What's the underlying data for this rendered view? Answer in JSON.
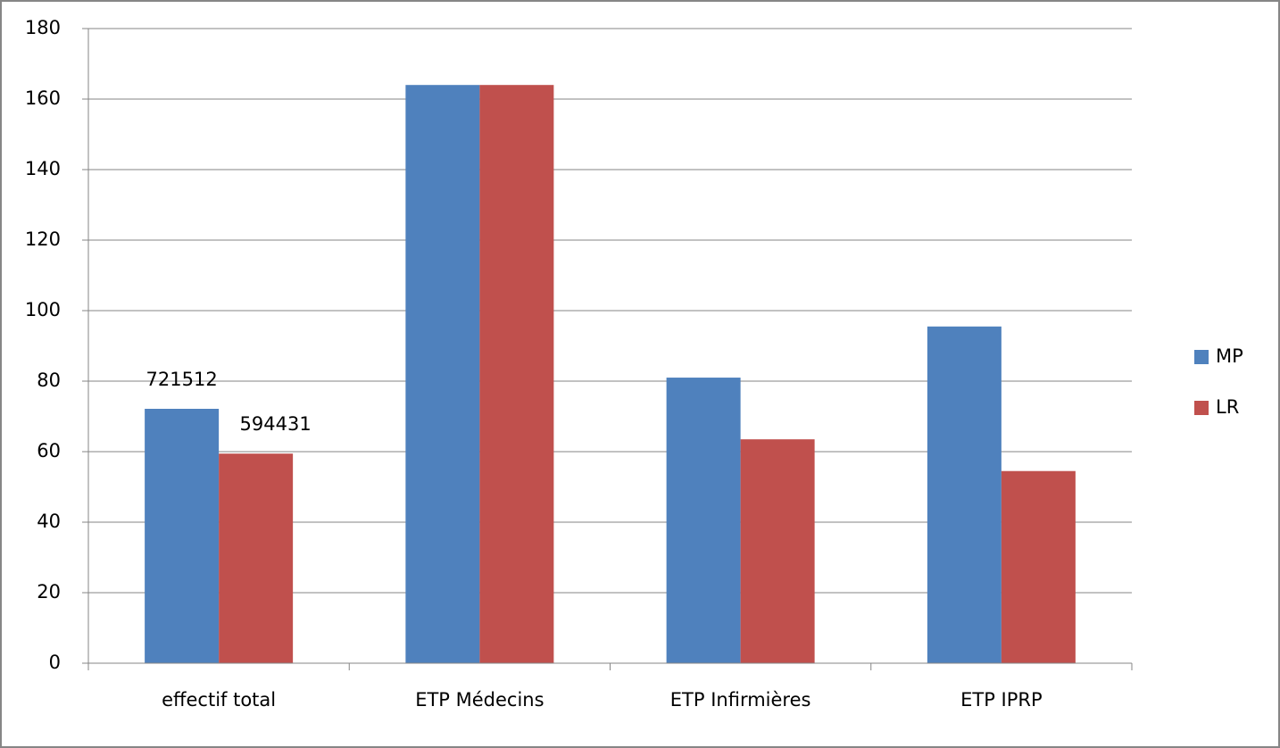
{
  "chart_data": {
    "type": "bar",
    "categories": [
      "effectif total",
      "ETP Médecins",
      "ETP Infirmières",
      "ETP IPRP"
    ],
    "series": [
      {
        "name": "MP",
        "color": "#4f81bd",
        "values": [
          72.1512,
          164,
          81,
          95.5
        ],
        "value_labels": [
          "721512",
          null,
          null,
          null
        ]
      },
      {
        "name": "LR",
        "color": "#c0504d",
        "values": [
          59.4431,
          164,
          63.5,
          54.5
        ],
        "value_labels": [
          "594431",
          null,
          null,
          null
        ]
      }
    ],
    "ylim": [
      0,
      180
    ],
    "yticks": [
      0,
      20,
      40,
      60,
      80,
      100,
      120,
      140,
      160,
      180
    ],
    "grid": true,
    "legend": "right"
  }
}
